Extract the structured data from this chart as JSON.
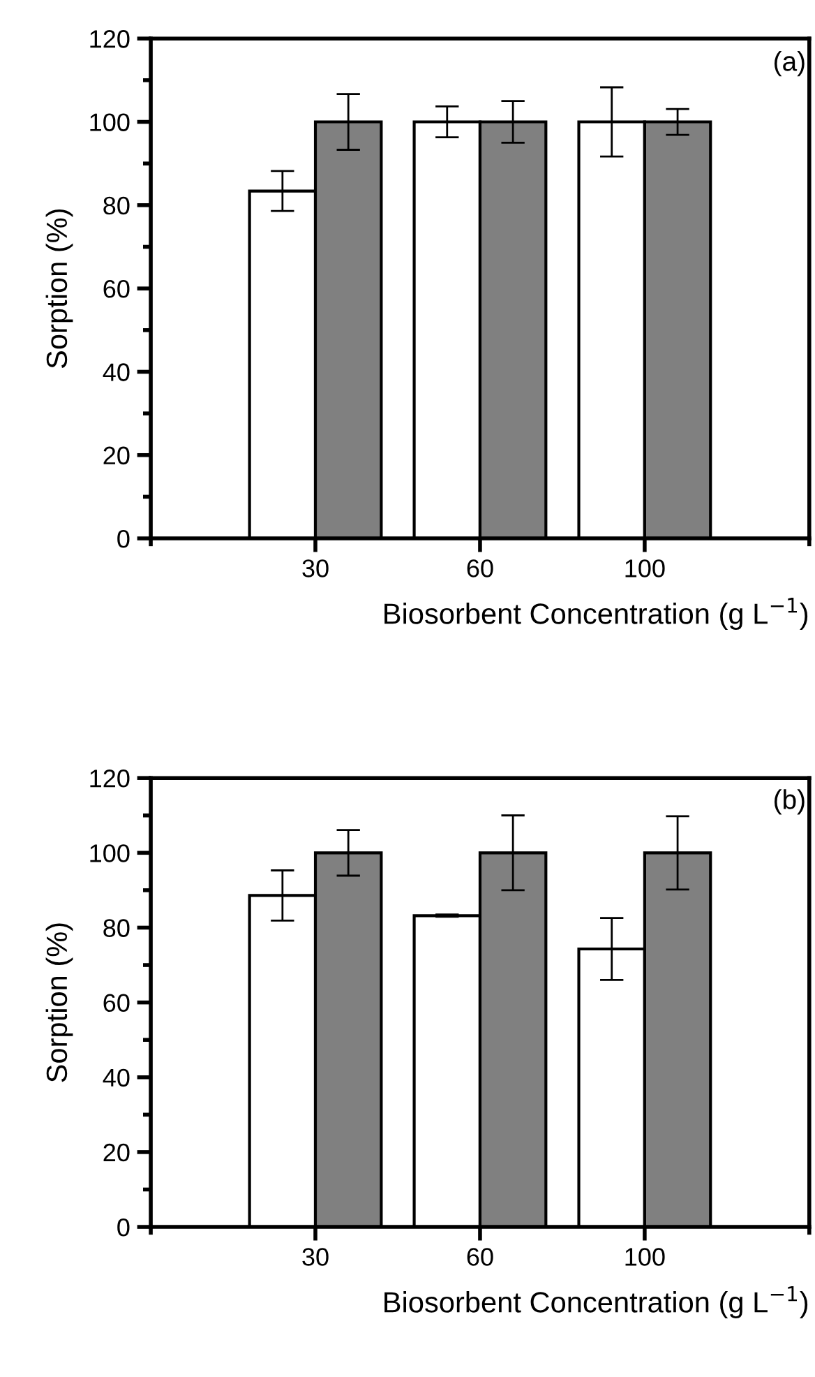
{
  "chart_data": [
    {
      "type": "bar",
      "categories": [
        "30",
        "60",
        "100"
      ],
      "xlabel": "Biosorbent Concentration (g L$^{−1}$)",
      "ylabel": "Sorption (%)",
      "annotations": [
        "(a)"
      ],
      "ylim": [
        0,
        120
      ],
      "yticks": [
        0,
        20,
        40,
        60,
        80,
        100,
        120
      ],
      "grid": false,
      "legend": false,
      "series": [
        {
          "color": "#ffffff",
          "values": [
            83.4,
            100,
            100
          ],
          "errors": [
            4.8,
            3.7,
            8.3
          ]
        },
        {
          "color": "#808080",
          "values": [
            100,
            100,
            100
          ],
          "errors": [
            6.7,
            5,
            3.1
          ]
        }
      ]
    },
    {
      "type": "bar",
      "categories": [
        "30",
        "60",
        "100"
      ],
      "xlabel": "Biosorbent Concentration (g L$^{−1}$)",
      "ylabel": "Sorption (%)",
      "annotations": [
        "(b)"
      ],
      "ylim": [
        0,
        120
      ],
      "yticks": [
        0,
        20,
        40,
        60,
        80,
        100,
        120
      ],
      "grid": false,
      "legend": false,
      "series": [
        {
          "color": "#ffffff",
          "values": [
            88.6,
            83.2,
            74.3
          ],
          "errors": [
            6.7,
            0.3,
            8.3
          ]
        },
        {
          "color": "#808080",
          "values": [
            100,
            100,
            100
          ],
          "errors": [
            6.1,
            10,
            9.8
          ]
        }
      ]
    }
  ]
}
